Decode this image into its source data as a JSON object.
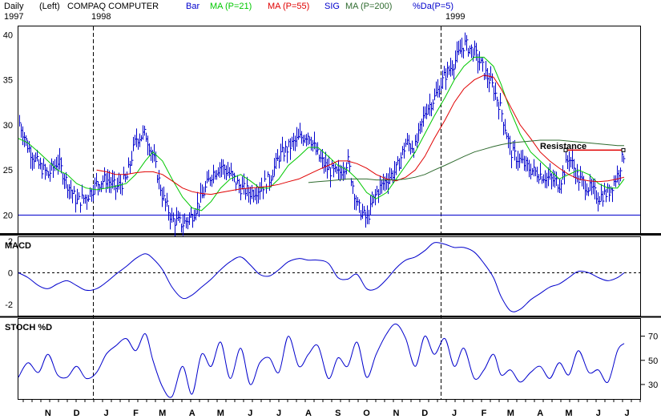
{
  "header": {
    "period": "Daily",
    "scale": "(Left)",
    "symbol": "COMPAQ COMPUTER",
    "start_year": "1997",
    "year_1998": "1998",
    "year_1999": "1999",
    "legend": {
      "bar": "Bar",
      "ma21": "MA (P=21)",
      "ma55": "MA (P=55)",
      "sig": "SIG",
      "ma200": "MA (P=200)",
      "pctd": "%Da(P=5)"
    }
  },
  "colors": {
    "bars": "#0000cc",
    "ma21": "#00c800",
    "ma55": "#e00000",
    "ma200": "#2f6b2f",
    "resistance": "#e00000",
    "panel_border": "#000000",
    "axis_blue": "#0000cc",
    "macd_line": "#0000cc",
    "stoch_line": "#0000cc"
  },
  "annotation": {
    "resistance_label": "Resistance",
    "resistance_level": 27.2,
    "support_level": 20
  },
  "panels": {
    "macd_label": "MACD",
    "stoch_label": "STOCH %D"
  },
  "chart_data": [
    {
      "type": "bar",
      "title": "COMPAQ COMPUTER",
      "subtitle": "Daily (Left)",
      "ylim": [
        18,
        41
      ],
      "yticks": [
        20,
        25,
        30,
        35,
        40
      ],
      "x": [
        "1997-10-15",
        "1997-10-25",
        "1997-11-05",
        "1997-11-15",
        "1997-11-25",
        "1997-12-05",
        "1997-12-15",
        "1997-12-25",
        "1998-01-05",
        "1998-01-15",
        "1998-01-25",
        "1998-02-05",
        "1998-02-15",
        "1998-02-25",
        "1998-03-05",
        "1998-03-15",
        "1998-03-25",
        "1998-04-05",
        "1998-04-15",
        "1998-04-25",
        "1998-05-05",
        "1998-05-15",
        "1998-05-25",
        "1998-06-05",
        "1998-06-15",
        "1998-06-25",
        "1998-07-05",
        "1998-07-15",
        "1998-07-25",
        "1998-08-05",
        "1998-08-15",
        "1998-08-25",
        "1998-09-05",
        "1998-09-15",
        "1998-09-25",
        "1998-10-05",
        "1998-10-15",
        "1998-10-25",
        "1998-11-05",
        "1998-11-15",
        "1998-11-25",
        "1998-12-05",
        "1998-12-15",
        "1998-12-25",
        "1999-01-05",
        "1999-01-15",
        "1999-01-25",
        "1999-02-05",
        "1999-02-15",
        "1999-02-25",
        "1999-03-05",
        "1999-03-15",
        "1999-03-25",
        "1999-04-05",
        "1999-04-15",
        "1999-04-25",
        "1999-05-05",
        "1999-05-15",
        "1999-05-25",
        "1999-06-05",
        "1999-06-15",
        "1999-06-25",
        "1999-07-05",
        "1999-07-12"
      ],
      "close": [
        30.5,
        27.5,
        25.5,
        24.5,
        26.0,
        23.5,
        21.5,
        22.0,
        23.5,
        24.0,
        23.0,
        24.0,
        28.5,
        29.0,
        26.5,
        22.0,
        19.5,
        19.0,
        20.0,
        22.0,
        24.5,
        25.5,
        24.5,
        23.0,
        22.5,
        23.0,
        24.0,
        26.5,
        27.5,
        28.5,
        29.0,
        26.5,
        25.0,
        24.5,
        26.0,
        21.0,
        19.5,
        22.5,
        24.0,
        25.0,
        28.0,
        27.5,
        31.5,
        33.0,
        35.5,
        37.0,
        39.0,
        38.0,
        36.0,
        34.0,
        31.5,
        27.0,
        26.0,
        25.0,
        24.5,
        24.0,
        23.5,
        26.5,
        24.0,
        23.0,
        22.0,
        22.5,
        24.5,
        27.0
      ],
      "series": [
        {
          "name": "MA (P=21)",
          "values": [
            28.5,
            28.0,
            27.0,
            26.0,
            25.0,
            24.5,
            23.5,
            23.0,
            22.8,
            23.0,
            23.2,
            23.5,
            24.5,
            26.0,
            27.0,
            26.0,
            24.0,
            22.0,
            20.8,
            20.5,
            21.5,
            23.0,
            24.0,
            24.5,
            23.8,
            23.0,
            23.0,
            24.0,
            25.5,
            26.5,
            27.5,
            27.5,
            26.5,
            25.5,
            25.0,
            24.0,
            22.5,
            21.8,
            22.5,
            24.0,
            25.5,
            27.0,
            29.0,
            31.0,
            33.0,
            35.0,
            36.5,
            37.5,
            37.5,
            36.5,
            34.5,
            31.5,
            29.0,
            27.0,
            26.0,
            25.0,
            24.0,
            24.5,
            25.0,
            24.5,
            23.5,
            23.0,
            23.0,
            24.0
          ]
        },
        {
          "name": "MA (P=55)",
          "values": [
            null,
            null,
            null,
            null,
            null,
            null,
            null,
            null,
            25.0,
            24.8,
            24.5,
            24.5,
            24.7,
            24.8,
            24.8,
            24.5,
            23.8,
            23.0,
            22.6,
            22.4,
            22.3,
            22.5,
            22.7,
            22.9,
            23.0,
            23.1,
            23.2,
            23.4,
            23.7,
            24.0,
            24.5,
            25.0,
            25.5,
            26.0,
            26.0,
            25.7,
            25.2,
            24.5,
            24.0,
            23.8,
            24.2,
            25.0,
            26.5,
            28.5,
            30.5,
            32.5,
            34.0,
            35.0,
            35.5,
            35.3,
            34.0,
            32.0,
            30.0,
            28.5,
            27.0,
            26.0,
            25.2,
            24.5,
            24.0,
            23.8,
            23.7,
            23.8,
            24.0,
            24.2
          ]
        },
        {
          "name": "MA (P=200)",
          "values": [
            null,
            null,
            null,
            null,
            null,
            null,
            null,
            null,
            null,
            null,
            null,
            null,
            null,
            null,
            null,
            null,
            null,
            null,
            null,
            null,
            null,
            null,
            null,
            null,
            null,
            null,
            null,
            null,
            null,
            null,
            23.6,
            23.7,
            23.8,
            23.9,
            24.0,
            24.0,
            24.0,
            23.9,
            23.9,
            23.9,
            24.0,
            24.2,
            24.5,
            25.0,
            25.5,
            26.0,
            26.5,
            27.0,
            27.3,
            27.6,
            27.8,
            28.0,
            28.1,
            28.2,
            28.3,
            28.3,
            28.3,
            28.2,
            28.1,
            28.0,
            27.9,
            27.8,
            27.7,
            27.7
          ]
        }
      ]
    },
    {
      "type": "line",
      "title": "MACD",
      "ylim": [
        -2.7,
        2.3
      ],
      "yticks": [
        -2,
        0,
        2
      ],
      "x": [
        "1997-10-15",
        "1997-10-25",
        "1997-11-05",
        "1997-11-15",
        "1997-11-25",
        "1997-12-05",
        "1997-12-15",
        "1997-12-25",
        "1998-01-05",
        "1998-01-15",
        "1998-01-25",
        "1998-02-05",
        "1998-02-15",
        "1998-02-25",
        "1998-03-05",
        "1998-03-15",
        "1998-03-25",
        "1998-04-05",
        "1998-04-15",
        "1998-04-25",
        "1998-05-05",
        "1998-05-15",
        "1998-05-25",
        "1998-06-05",
        "1998-06-15",
        "1998-06-25",
        "1998-07-05",
        "1998-07-15",
        "1998-07-25",
        "1998-08-05",
        "1998-08-15",
        "1998-08-25",
        "1998-09-05",
        "1998-09-15",
        "1998-09-25",
        "1998-10-05",
        "1998-10-15",
        "1998-10-25",
        "1998-11-05",
        "1998-11-15",
        "1998-11-25",
        "1998-12-05",
        "1998-12-15",
        "1998-12-25",
        "1999-01-05",
        "1999-01-15",
        "1999-01-25",
        "1999-02-05",
        "1999-02-15",
        "1999-02-25",
        "1999-03-05",
        "1999-03-15",
        "1999-03-25",
        "1999-04-05",
        "1999-04-15",
        "1999-04-25",
        "1999-05-05",
        "1999-05-15",
        "1999-05-25",
        "1999-06-05",
        "1999-06-15",
        "1999-06-25",
        "1999-07-05",
        "1999-07-12"
      ],
      "series": [
        {
          "name": "MACD",
          "values": [
            0.0,
            -0.3,
            -0.8,
            -1.0,
            -0.7,
            -0.5,
            -0.8,
            -1.1,
            -1.0,
            -0.6,
            -0.1,
            0.4,
            0.9,
            1.2,
            0.9,
            0.2,
            -0.9,
            -1.6,
            -1.4,
            -0.9,
            -0.4,
            0.2,
            0.7,
            1.0,
            0.5,
            -0.1,
            -0.2,
            0.2,
            0.7,
            0.9,
            0.8,
            0.8,
            0.6,
            -0.3,
            -0.4,
            -0.1,
            -1.0,
            -1.0,
            -0.4,
            0.3,
            0.8,
            1.0,
            1.4,
            1.9,
            1.8,
            1.6,
            1.6,
            1.3,
            0.6,
            -0.3,
            -1.5,
            -2.4,
            -2.3,
            -1.7,
            -1.3,
            -0.9,
            -0.7,
            -0.3,
            0.1,
            0.0,
            -0.3,
            -0.5,
            -0.3,
            0.0
          ]
        }
      ]
    },
    {
      "type": "line",
      "title": "STOCH %D",
      "ylim": [
        18,
        85
      ],
      "yticks": [
        30,
        50,
        70
      ],
      "x": [
        "1997-10-15",
        "1997-10-25",
        "1997-11-05",
        "1997-11-15",
        "1997-11-25",
        "1997-12-05",
        "1997-12-15",
        "1997-12-25",
        "1998-01-05",
        "1998-01-15",
        "1998-01-25",
        "1998-02-05",
        "1998-02-15",
        "1998-02-25",
        "1998-03-05",
        "1998-03-15",
        "1998-03-25",
        "1998-04-05",
        "1998-04-15",
        "1998-04-25",
        "1998-05-05",
        "1998-05-15",
        "1998-05-25",
        "1998-06-05",
        "1998-06-15",
        "1998-06-25",
        "1998-07-05",
        "1998-07-15",
        "1998-07-25",
        "1998-08-05",
        "1998-08-15",
        "1998-08-25",
        "1998-09-05",
        "1998-09-15",
        "1998-09-25",
        "1998-10-05",
        "1998-10-15",
        "1998-10-25",
        "1998-11-05",
        "1998-11-15",
        "1998-11-25",
        "1998-12-05",
        "1998-12-15",
        "1998-12-25",
        "1999-01-05",
        "1999-01-15",
        "1999-01-25",
        "1999-02-05",
        "1999-02-15",
        "1999-02-25",
        "1999-03-05",
        "1999-03-15",
        "1999-03-25",
        "1999-04-05",
        "1999-04-15",
        "1999-04-25",
        "1999-05-05",
        "1999-05-15",
        "1999-05-25",
        "1999-06-05",
        "1999-06-15",
        "1999-06-25",
        "1999-07-05",
        "1999-07-12"
      ],
      "series": [
        {
          "name": "STOCH %D",
          "values": [
            36,
            48,
            40,
            55,
            38,
            36,
            45,
            35,
            40,
            55,
            62,
            68,
            58,
            72,
            50,
            28,
            20,
            45,
            22,
            55,
            45,
            65,
            35,
            60,
            30,
            48,
            52,
            40,
            70,
            45,
            55,
            62,
            35,
            52,
            45,
            65,
            36,
            55,
            72,
            80,
            68,
            45,
            70,
            55,
            68,
            45,
            60,
            35,
            42,
            55,
            38,
            42,
            32,
            40,
            45,
            35,
            48,
            38,
            58,
            40,
            42,
            32,
            58,
            64
          ]
        }
      ]
    }
  ],
  "x_axis": {
    "month_labels": [
      "N",
      "D",
      "J",
      "F",
      "M",
      "A",
      "M",
      "J",
      "J",
      "A",
      "S",
      "O",
      "N",
      "D",
      "J",
      "F",
      "M",
      "A",
      "M",
      "J",
      "J"
    ],
    "month_dates": [
      "1997-11-15",
      "1997-12-15",
      "1998-01-15",
      "1998-02-15",
      "1998-03-15",
      "1998-04-15",
      "1998-05-15",
      "1998-06-15",
      "1998-07-15",
      "1998-08-15",
      "1998-09-15",
      "1998-10-15",
      "1998-11-15",
      "1998-12-15",
      "1999-01-15",
      "1999-02-15",
      "1999-03-15",
      "1999-04-15",
      "1999-05-15",
      "1999-06-15",
      "1999-07-15"
    ],
    "year_dividers": [
      "1998-01-01",
      "1999-01-01"
    ]
  }
}
